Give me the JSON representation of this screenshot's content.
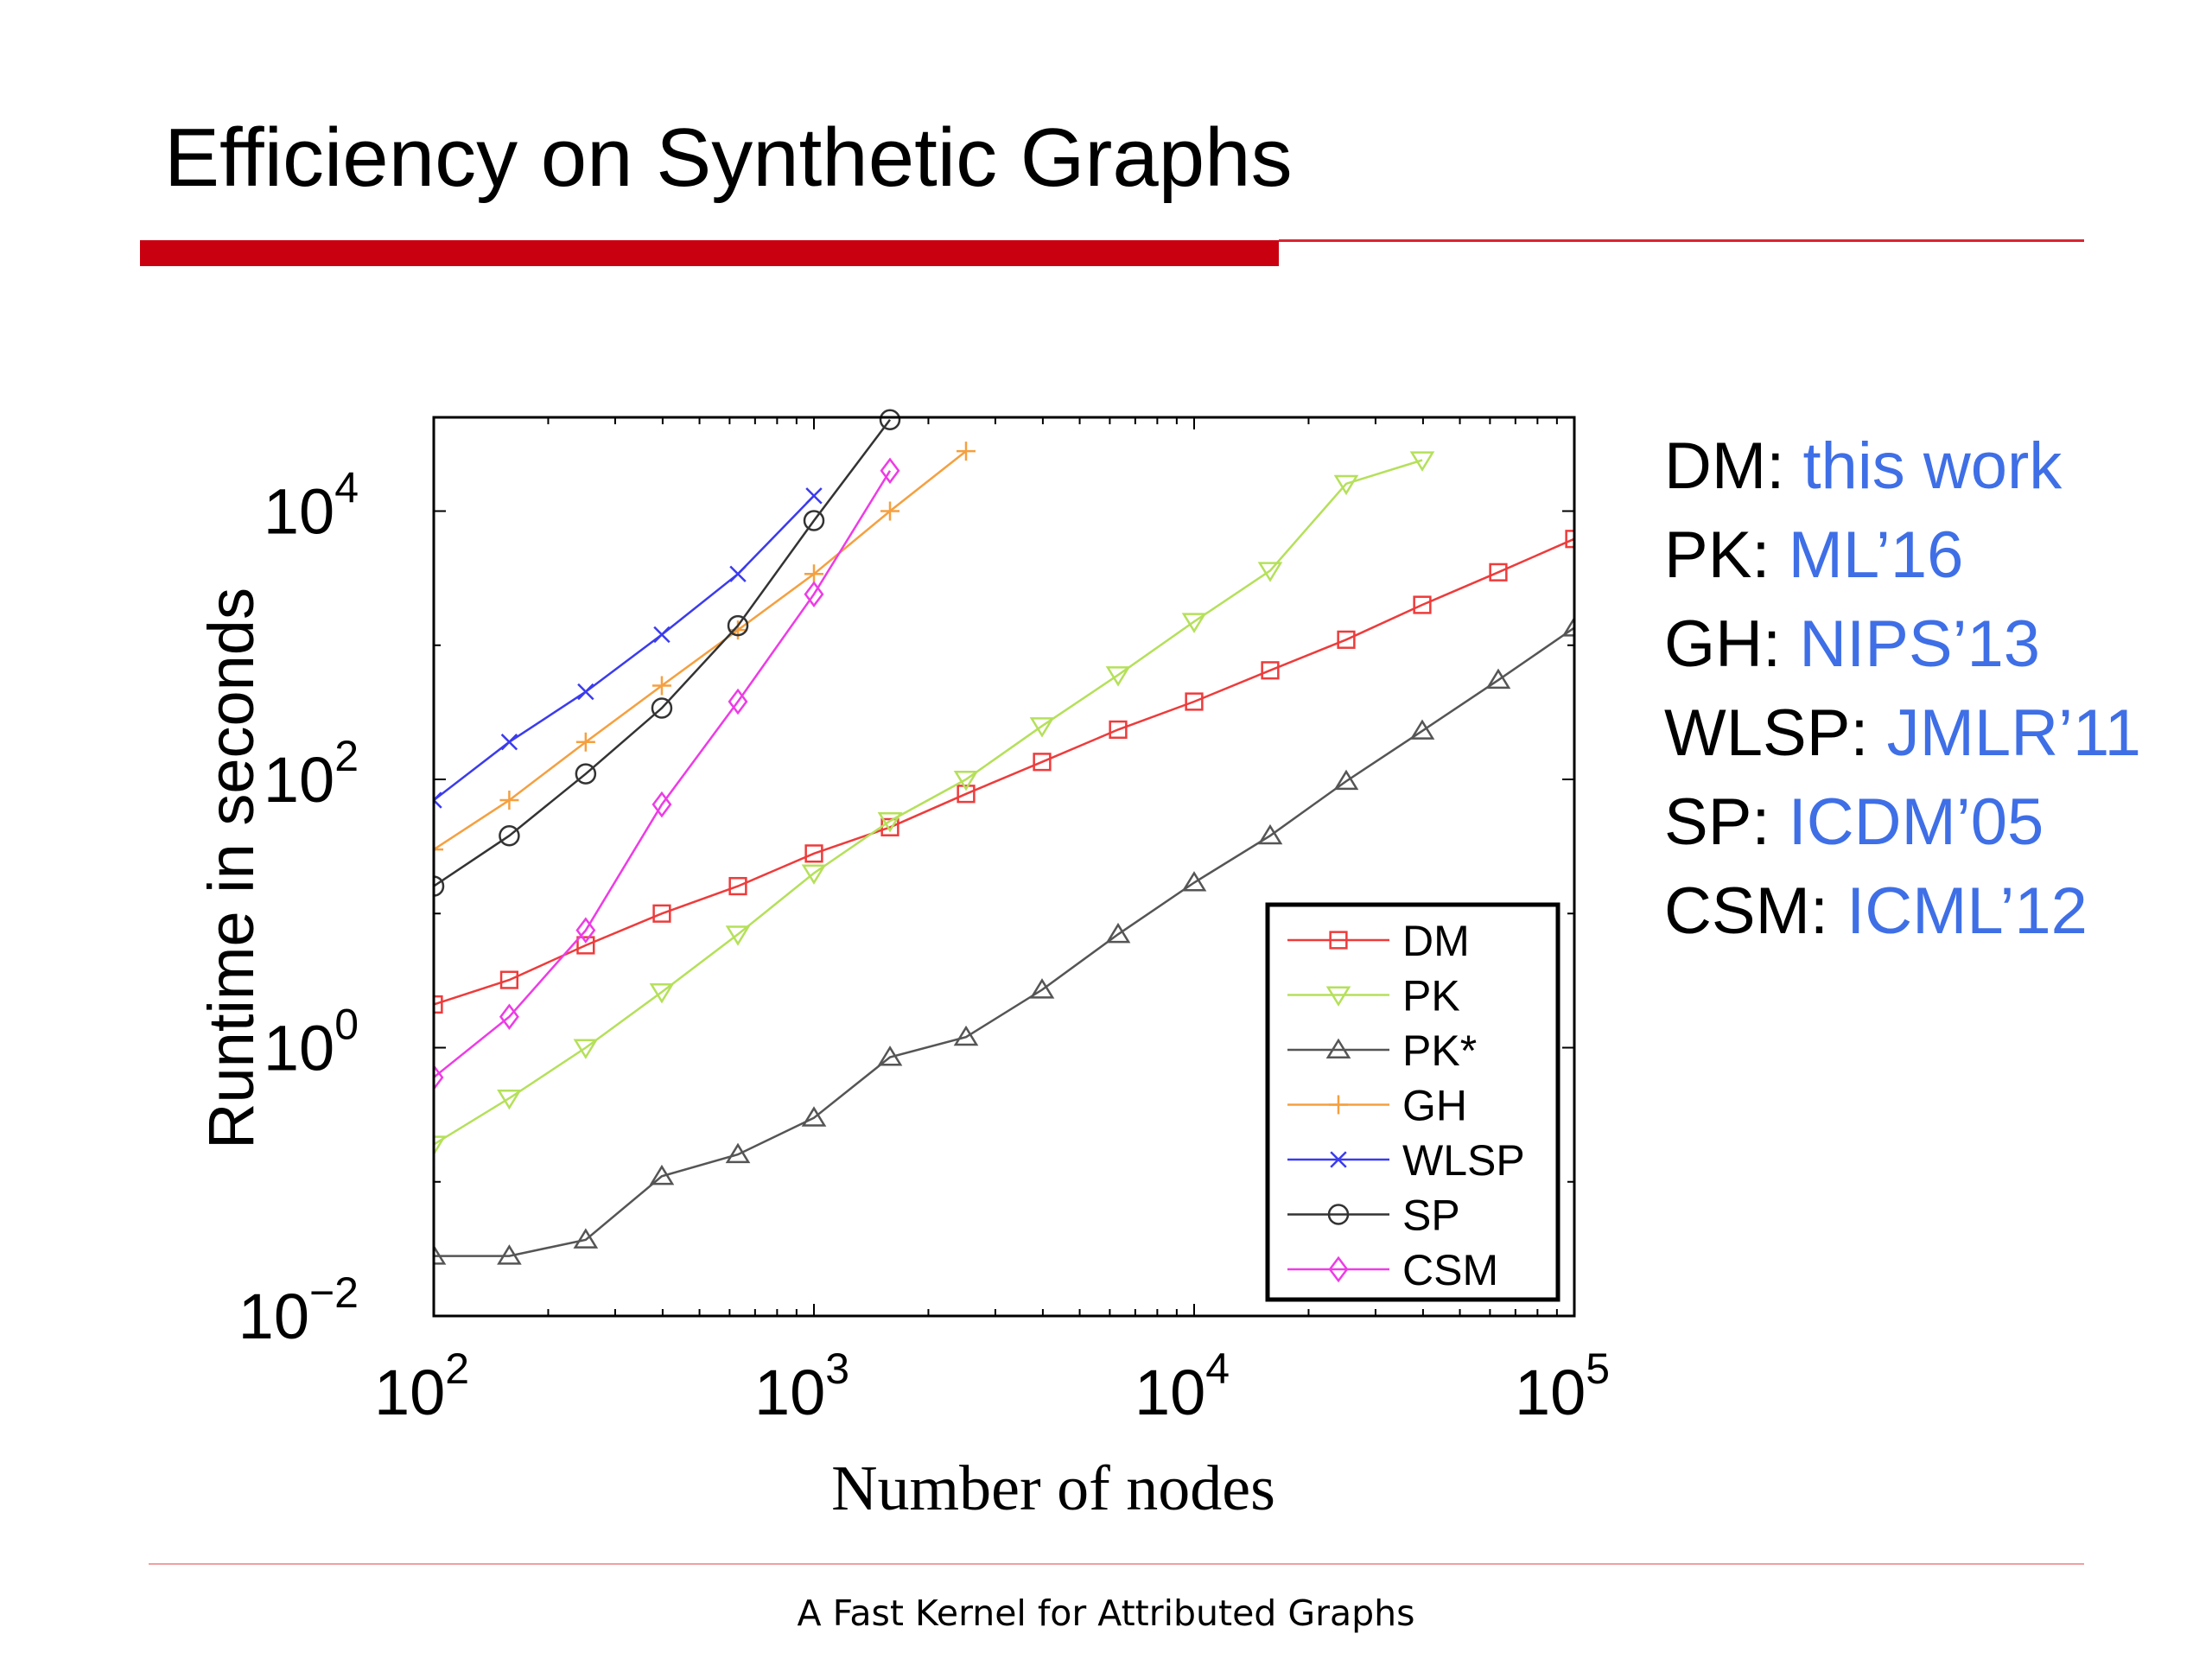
{
  "slide": {
    "title": "Efficiency on Synthetic Graphs",
    "footer": "A Fast Kernel for Attributed Graphs"
  },
  "references": [
    {
      "key": "DM",
      "value": "this work"
    },
    {
      "key": "PK",
      "value": "ML’16"
    },
    {
      "key": "GH",
      "value": "NIPS’13"
    },
    {
      "key": "WLSP",
      "value": "JMLR’11"
    },
    {
      "key": "SP",
      "value": "ICDM’05"
    },
    {
      "key": "CSM",
      "value": "ICML’12"
    }
  ],
  "colors": {
    "accent_red": "#c8000f",
    "reference_blue": "#3f6fe6"
  },
  "chart_data": {
    "type": "line",
    "xlabel": "Number of nodes",
    "ylabel": "Runtime in seconds",
    "x_scale": "log",
    "y_scale": "log",
    "xlim": [
      100,
      100000
    ],
    "ylim": [
      0.01,
      50000
    ],
    "x_ticks": [
      {
        "base": "10",
        "exp": "2",
        "value": 100
      },
      {
        "base": "10",
        "exp": "3",
        "value": 1000
      },
      {
        "base": "10",
        "exp": "4",
        "value": 10000
      },
      {
        "base": "10",
        "exp": "5",
        "value": 100000
      }
    ],
    "y_ticks": [
      {
        "base": "10",
        "exp": "−2",
        "value": 0.01
      },
      {
        "base": "10",
        "exp": "0",
        "value": 1
      },
      {
        "base": "10",
        "exp": "2",
        "value": 100
      },
      {
        "base": "10",
        "exp": "4",
        "value": 10000
      }
    ],
    "legend_position": "bottom-right",
    "grid": false,
    "series": [
      {
        "name": "DM",
        "color": "#ee3b3b",
        "marker": "square",
        "x": [
          100,
          158,
          251,
          398,
          631,
          1000,
          1585,
          2512,
          3981,
          6310,
          10000,
          15849,
          25119,
          39811,
          63096,
          100000
        ],
        "y": [
          2.1,
          3.2,
          5.8,
          10,
          16,
          28,
          44,
          78,
          135,
          235,
          380,
          650,
          1100,
          2000,
          3500,
          6200
        ]
      },
      {
        "name": "PK",
        "color": "#b5e05a",
        "marker": "triangle-down",
        "x": [
          100,
          158,
          251,
          398,
          631,
          1000,
          1585,
          2512,
          3981,
          6310,
          10000,
          15849,
          25119,
          39811
        ],
        "y": [
          0.19,
          0.42,
          1.0,
          2.6,
          7.0,
          20,
          49,
          100,
          250,
          600,
          1500,
          3600,
          16000,
          24000
        ]
      },
      {
        "name": "PK*",
        "color": "#555555",
        "marker": "triangle-up",
        "x": [
          100,
          158,
          251,
          398,
          631,
          1000,
          1585,
          2512,
          3981,
          6310,
          10000,
          15849,
          25119,
          39811,
          63096,
          100000
        ],
        "y": [
          0.028,
          0.028,
          0.037,
          0.11,
          0.16,
          0.3,
          0.85,
          1.2,
          2.7,
          7,
          17,
          38,
          97,
          230,
          550,
          1350
        ]
      },
      {
        "name": "GH",
        "color": "#f5a040",
        "marker": "plus",
        "x": [
          100,
          158,
          251,
          398,
          631,
          1000,
          1585,
          2512
        ],
        "y": [
          30,
          70,
          190,
          500,
          1300,
          3400,
          10000,
          28000
        ]
      },
      {
        "name": "WLSP",
        "color": "#3b3bef",
        "marker": "x",
        "x": [
          100,
          158,
          251,
          398,
          631,
          1000
        ],
        "y": [
          70,
          190,
          450,
          1200,
          3400,
          13000
        ]
      },
      {
        "name": "SP",
        "color": "#333333",
        "marker": "circle",
        "x": [
          100,
          158,
          251,
          398,
          631,
          1000,
          1585
        ],
        "y": [
          16,
          38,
          110,
          340,
          1400,
          8500,
          48000
        ]
      },
      {
        "name": "CSM",
        "color": "#ee3be6",
        "marker": "diamond",
        "x": [
          100,
          158,
          251,
          398,
          631,
          1000,
          1585
        ],
        "y": [
          0.6,
          1.7,
          7.5,
          65,
          380,
          2400,
          20000
        ]
      }
    ]
  }
}
